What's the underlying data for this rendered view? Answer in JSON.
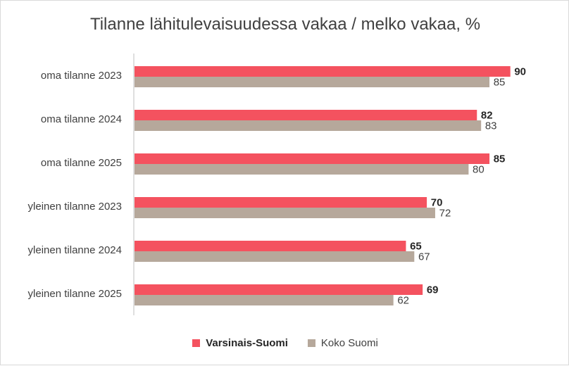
{
  "chart_data": {
    "type": "bar",
    "orientation": "horizontal",
    "title": "Tilanne lähitulevaisuudessa vakaa / melko vakaa, %",
    "categories": [
      "oma tilanne 2023",
      "oma tilanne 2024",
      "oma tilanne 2025",
      "yleinen tilanne  2023",
      "yleinen tilanne 2024",
      "yleinen tilanne 2025"
    ],
    "series": [
      {
        "name": "Varsinais-Suomi",
        "values": [
          90,
          82,
          85,
          70,
          65,
          69
        ],
        "color": "#f4525f"
      },
      {
        "name": "Koko Suomi",
        "values": [
          85,
          83,
          80,
          72,
          67,
          62
        ],
        "color": "#b6a89b"
      }
    ],
    "xlim": [
      0,
      100
    ],
    "grid": false,
    "legend_position": "bottom"
  }
}
